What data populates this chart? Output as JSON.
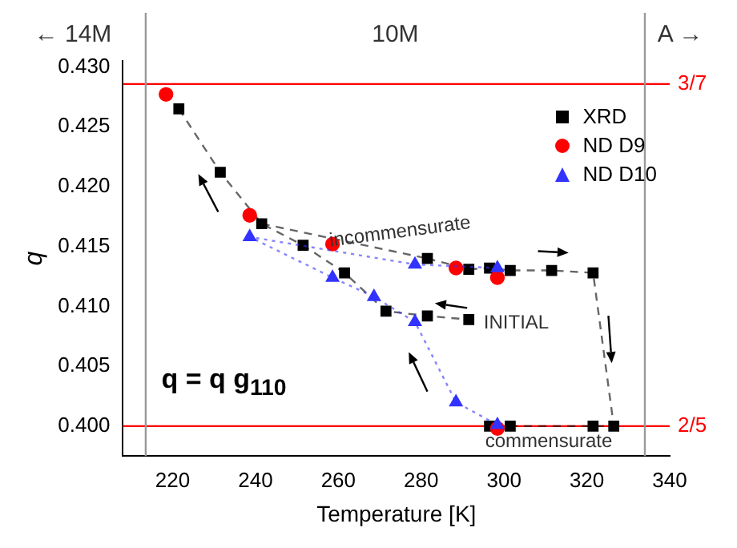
{
  "chart_data": {
    "type": "scatter",
    "xlabel": "Temperature [K]",
    "ylabel": "q",
    "xlim": [
      208,
      340
    ],
    "xticks": [
      220,
      240,
      260,
      280,
      300,
      320,
      340
    ],
    "ylim": [
      0.3975,
      0.4305
    ],
    "yticks": [
      {
        "value": 0.4,
        "label": "0.400"
      },
      0.405,
      {
        "value": 0.41,
        "label": "0.410"
      },
      0.415,
      {
        "value": 0.42,
        "label": "0.420"
      },
      0.425,
      {
        "value": 0.43,
        "label": "0.430"
      }
    ],
    "series": [
      {
        "name": "XRD",
        "type": "line",
        "color": "#000000",
        "marker": "square",
        "line_style": "dashed",
        "x": [
          221.5,
          231.5,
          241.5,
          251.5,
          261.5,
          271.5,
          281.5,
          291.5
        ],
        "values": [
          0.4265,
          0.4212,
          0.4169,
          0.4151,
          0.4128,
          0.4096,
          0.4092,
          0.4089
        ]
      },
      {
        "type": "line",
        "color": "#000000",
        "marker": "square",
        "line_style": "dashed",
        "x": [
          281.5,
          291.5,
          296.5,
          301.5,
          311.5,
          321.5,
          326.5,
          321.5,
          301.5,
          296.5
        ],
        "values": [
          0.414,
          0.4131,
          0.4132,
          0.413,
          0.413,
          0.4128,
          0.4,
          0.4,
          0.4,
          0.4
        ]
      },
      {
        "type": "line",
        "color": "#000000",
        "marker": "none",
        "line_style": "dashed",
        "x": [
          241.5,
          281.5
        ],
        "values": [
          0.4169,
          0.414
        ]
      },
      {
        "name": "ND D9",
        "type": "scatter",
        "color": "#ff0000",
        "marker": "circle",
        "x": [
          218.4,
          238.6,
          258.6,
          288.4,
          298.4,
          298.4
        ],
        "values": [
          0.4277,
          0.4176,
          0.4152,
          0.4132,
          0.4124,
          0.3998
        ]
      },
      {
        "name": "ND D10",
        "type": "line",
        "color": "#3333ff",
        "marker": "triangle",
        "line_style": "dotted",
        "x": [
          298.4,
          278.5,
          238.6,
          258.6,
          268.6,
          278.5,
          288.4,
          298.4
        ],
        "values": [
          0.4132,
          0.4135,
          0.4158,
          0.4124,
          0.4108,
          0.4087,
          0.402,
          0.4001
        ]
      }
    ],
    "ref_lines": [
      {
        "axis": "y",
        "value": 0.42857,
        "color": "#ff0000"
      },
      {
        "axis": "y",
        "value": 0.4,
        "color": "#ff0000"
      },
      {
        "axis": "x",
        "value": 213.5,
        "color": "#999999"
      },
      {
        "axis": "x",
        "value": 334,
        "color": "#999999"
      }
    ],
    "annotations": [
      "3/7",
      "2/5",
      "incommensurate",
      "INITIAL",
      "commensurate",
      "← 14M",
      "10M",
      "A →",
      "q = q g$_{110}$"
    ],
    "legend": "top right",
    "grid": false
  }
}
